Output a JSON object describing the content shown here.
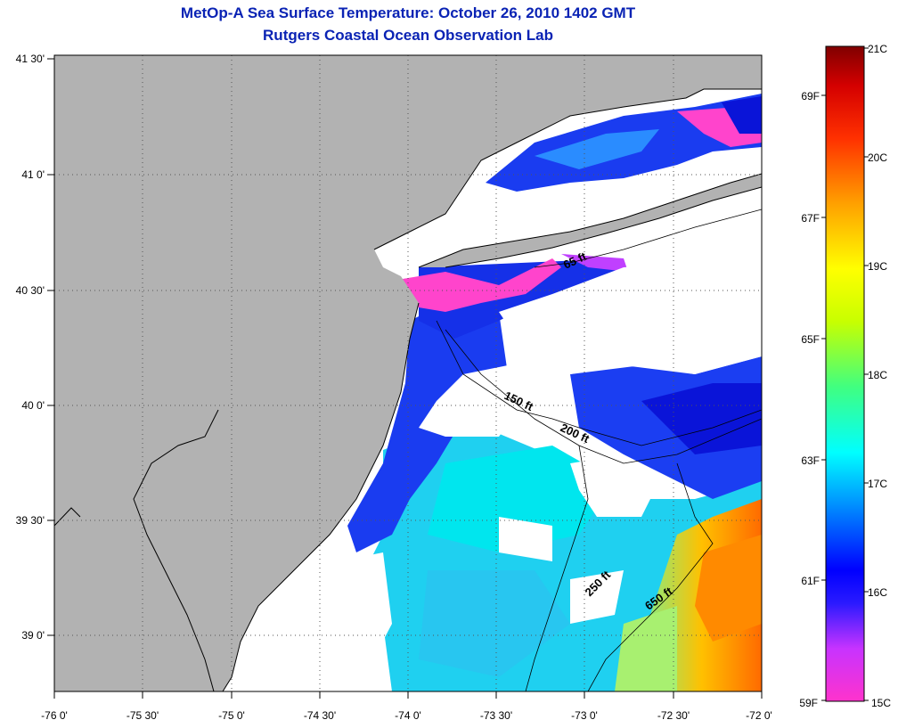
{
  "title": {
    "line1": "MetOp-A Sea Surface Temperature:  October 26, 2010 1402 GMT",
    "line2": "Rutgers Coastal Ocean Observation Lab"
  },
  "map": {
    "lon_ticks": [
      "-76 0'",
      "-75 30'",
      "-75 0'",
      "-74 30'",
      "-74 0'",
      "-73 30'",
      "-73 0'",
      "-72 30'",
      "-72 0'"
    ],
    "lat_ticks": [
      "41 30'",
      "41 0'",
      "40 30'",
      "40 0'",
      "39 30'",
      "39 0'"
    ],
    "lon_range": [
      -76.0,
      -72.0
    ],
    "lat_range": [
      38.75,
      41.5
    ],
    "colors": {
      "land": "#b2b2b2",
      "no_data": "#ffffff",
      "coast": "#000000"
    },
    "contours": [
      {
        "label": "65 ft",
        "depth_ft": 65
      },
      {
        "label": "150 ft",
        "depth_ft": 150
      },
      {
        "label": "200 ft",
        "depth_ft": 200
      },
      {
        "label": "250 ft",
        "depth_ft": 250
      },
      {
        "label": "650 ft",
        "depth_ft": 650
      }
    ]
  },
  "colorbar": {
    "celsius_labels": [
      "21C",
      "20C",
      "19C",
      "18C",
      "17C",
      "16C",
      "15C"
    ],
    "fahrenheit_labels": [
      "69F",
      "67F",
      "65F",
      "63F",
      "61F",
      "59F"
    ],
    "range_c": [
      15,
      21
    ],
    "colors": [
      "#ff33cc",
      "#c833ff",
      "#0000ff",
      "#00b4ff",
      "#00ffff",
      "#40ff80",
      "#c8ff00",
      "#ffff00",
      "#ffa000",
      "#ff3000",
      "#d40000",
      "#800000"
    ]
  }
}
